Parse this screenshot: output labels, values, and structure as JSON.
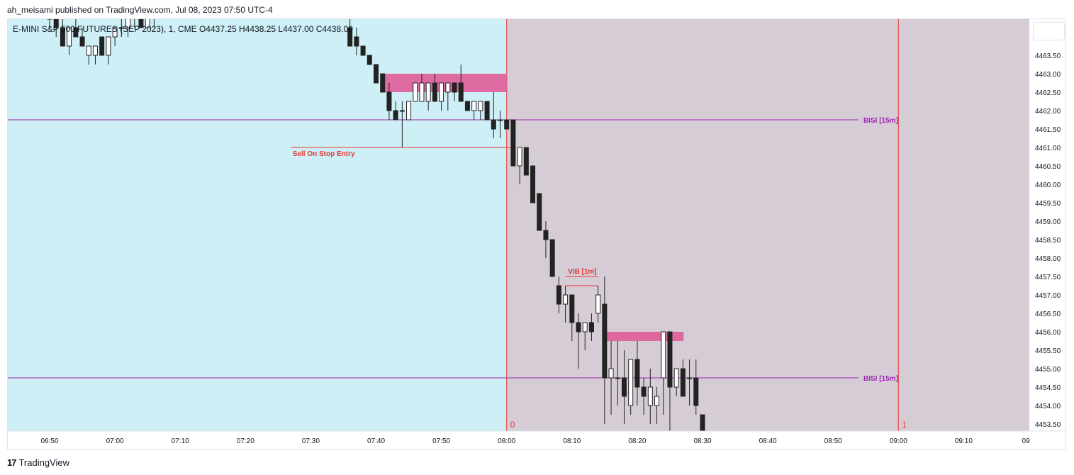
{
  "header": {
    "published_by": "ah_meisami published on TradingView.com, Jul 08, 2023 07:50 UTC-4"
  },
  "legend": {
    "symbol_line": "E-MINI S&P 500 FUTURES (SEP 2023), 1, CME  O4437.25  H4438.25  L4437.00  C4438.00"
  },
  "footer": {
    "logo_glyph": "17",
    "brand": "TradingView"
  },
  "colors": {
    "bg_pre": "#cdeff5",
    "bg_post": "#d6ccd5",
    "bull_body": "#ffffff",
    "bear_body": "#222222",
    "wick": "#222222",
    "bisi_line": "#9c27b0",
    "red_line": "#e53935",
    "zone": "#e0609a"
  },
  "chart_data": {
    "type": "candlestick",
    "timeframe": "1m",
    "y_ticks": [
      "4463.50",
      "4463.00",
      "4462.50",
      "4462.00",
      "4461.50",
      "4461.00",
      "4460.50",
      "4460.00",
      "4459.50",
      "4459.00",
      "4458.50",
      "4458.00",
      "4457.50",
      "4457.00",
      "4456.50",
      "4456.00",
      "4455.50",
      "4455.00",
      "4454.50",
      "4454.00",
      "4453.50"
    ],
    "x_ticks": [
      "06:50",
      "07:00",
      "07:10",
      "07:20",
      "07:30",
      "07:40",
      "07:50",
      "08:00",
      "08:10",
      "08:20",
      "08:30",
      "08:40",
      "08:50",
      "09:00",
      "09:10",
      "09"
    ],
    "ylim": [
      4453.3,
      4464.3
    ],
    "session_markers": [
      {
        "time": "08:00",
        "label": "0"
      },
      {
        "time": "09:00",
        "label": "1"
      }
    ],
    "annotations": [
      {
        "kind": "hline",
        "price": 4461.75,
        "from": "06:44",
        "to": "09:00",
        "label": "BISI [15m]",
        "color": "bisi"
      },
      {
        "kind": "hline",
        "price": 4454.75,
        "from": "06:44",
        "to": "09:00",
        "label": "BISI [15m]",
        "color": "bisi"
      },
      {
        "kind": "hline",
        "price": 4461.0,
        "from": "07:27",
        "to": "08:01",
        "label": "Sell On Stop Entry",
        "color": "red"
      },
      {
        "kind": "hline",
        "price": 4457.5,
        "from": "08:09",
        "to": "08:14",
        "label": "VIB [1m]",
        "color": "red"
      },
      {
        "kind": "hline",
        "price": 4457.25,
        "from": "08:09",
        "to": "08:14",
        "label": "",
        "color": "red"
      },
      {
        "kind": "zone",
        "from": "07:41",
        "to": "08:00",
        "top": 4463.0,
        "bottom": 4462.5
      },
      {
        "kind": "zone",
        "from": "08:15",
        "to": "08:27",
        "top": 4456.0,
        "bottom": 4455.75
      }
    ],
    "candles": [
      {
        "t": "06:50",
        "o": 4464.5,
        "h": 4464.75,
        "l": 4464.25,
        "c": 4464.5
      },
      {
        "t": "06:51",
        "o": 4464.5,
        "h": 4464.75,
        "l": 4464.0,
        "c": 4464.25
      },
      {
        "t": "06:52",
        "o": 4464.25,
        "h": 4464.5,
        "l": 4463.75,
        "c": 4463.75
      },
      {
        "t": "06:53",
        "o": 4463.75,
        "h": 4464.25,
        "l": 4463.5,
        "c": 4464.25
      },
      {
        "t": "06:54",
        "o": 4464.25,
        "h": 4464.5,
        "l": 4464.0,
        "c": 4464.0
      },
      {
        "t": "06:55",
        "o": 4464.0,
        "h": 4464.25,
        "l": 4463.75,
        "c": 4463.75
      },
      {
        "t": "06:56",
        "o": 4463.5,
        "h": 4463.75,
        "l": 4463.25,
        "c": 4463.75
      },
      {
        "t": "06:57",
        "o": 4463.5,
        "h": 4463.75,
        "l": 4463.25,
        "c": 4463.75
      },
      {
        "t": "06:58",
        "o": 4464.0,
        "h": 4464.0,
        "l": 4463.5,
        "c": 4463.5
      },
      {
        "t": "06:59",
        "o": 4463.5,
        "h": 4464.0,
        "l": 4463.25,
        "c": 4464.0
      },
      {
        "t": "07:00",
        "o": 4464.0,
        "h": 4464.25,
        "l": 4463.75,
        "c": 4464.25
      },
      {
        "t": "07:01",
        "o": 4464.25,
        "h": 4464.5,
        "l": 4464.0,
        "c": 4464.25
      },
      {
        "t": "07:02",
        "o": 4464.25,
        "h": 4464.5,
        "l": 4464.0,
        "c": 4464.5
      },
      {
        "t": "07:03",
        "o": 4464.5,
        "h": 4464.75,
        "l": 4464.25,
        "c": 4464.75
      },
      {
        "t": "07:04",
        "o": 4464.75,
        "h": 4464.75,
        "l": 4464.25,
        "c": 4464.25
      },
      {
        "t": "07:05",
        "o": 4464.25,
        "h": 4464.75,
        "l": 4464.25,
        "c": 4464.5
      },
      {
        "t": "07:06",
        "o": 4464.5,
        "h": 4464.75,
        "l": 4464.25,
        "c": 4464.75
      },
      {
        "t": "07:36",
        "o": 4464.25,
        "h": 4464.5,
        "l": 4463.75,
        "c": 4463.75
      },
      {
        "t": "07:37",
        "o": 4464.0,
        "h": 4464.25,
        "l": 4463.5,
        "c": 4463.75
      },
      {
        "t": "07:38",
        "o": 4463.75,
        "h": 4463.75,
        "l": 4463.5,
        "c": 4463.5
      },
      {
        "t": "07:39",
        "o": 4463.5,
        "h": 4463.5,
        "l": 4463.25,
        "c": 4463.25
      },
      {
        "t": "07:40",
        "o": 4463.25,
        "h": 4463.25,
        "l": 4462.75,
        "c": 4462.75
      },
      {
        "t": "07:41",
        "o": 4463.0,
        "h": 4463.0,
        "l": 4462.5,
        "c": 4462.5
      },
      {
        "t": "07:42",
        "o": 4462.5,
        "h": 4462.75,
        "l": 4461.75,
        "c": 4462.0
      },
      {
        "t": "07:43",
        "o": 4462.0,
        "h": 4462.25,
        "l": 4461.75,
        "c": 4461.75
      },
      {
        "t": "07:44",
        "o": 4462.0,
        "h": 4462.25,
        "l": 4461.0,
        "c": 4462.0
      },
      {
        "t": "07:45",
        "o": 4461.75,
        "h": 4462.25,
        "l": 4461.75,
        "c": 4462.25
      },
      {
        "t": "07:46",
        "o": 4462.25,
        "h": 4462.75,
        "l": 4462.25,
        "c": 4462.75
      },
      {
        "t": "07:47",
        "o": 4462.25,
        "h": 4463.0,
        "l": 4462.25,
        "c": 4462.75
      },
      {
        "t": "07:48",
        "o": 4462.25,
        "h": 4462.75,
        "l": 4462.0,
        "c": 4462.75
      },
      {
        "t": "07:49",
        "o": 4462.75,
        "h": 4463.0,
        "l": 4462.25,
        "c": 4462.25
      },
      {
        "t": "07:50",
        "o": 4462.25,
        "h": 4462.75,
        "l": 4462.0,
        "c": 4462.75
      },
      {
        "t": "07:51",
        "o": 4462.5,
        "h": 4462.75,
        "l": 4462.0,
        "c": 4462.75
      },
      {
        "t": "07:52",
        "o": 4462.75,
        "h": 4462.75,
        "l": 4462.25,
        "c": 4462.5
      },
      {
        "t": "07:53",
        "o": 4462.75,
        "h": 4463.25,
        "l": 4462.25,
        "c": 4462.25
      },
      {
        "t": "07:54",
        "o": 4462.25,
        "h": 4462.25,
        "l": 4462.0,
        "c": 4462.0
      },
      {
        "t": "07:55",
        "o": 4462.0,
        "h": 4462.25,
        "l": 4461.75,
        "c": 4462.25
      },
      {
        "t": "07:56",
        "o": 4462.0,
        "h": 4462.25,
        "l": 4461.75,
        "c": 4462.25
      },
      {
        "t": "07:57",
        "o": 4462.25,
        "h": 4462.25,
        "l": 4461.75,
        "c": 4461.75
      },
      {
        "t": "07:58",
        "o": 4461.75,
        "h": 4462.5,
        "l": 4461.25,
        "c": 4461.5
      },
      {
        "t": "07:59",
        "o": 4461.75,
        "h": 4462.0,
        "l": 4461.25,
        "c": 4461.75
      },
      {
        "t": "08:00",
        "o": 4461.75,
        "h": 4461.75,
        "l": 4461.5,
        "c": 4461.5
      },
      {
        "t": "08:01",
        "o": 4461.75,
        "h": 4461.75,
        "l": 4460.5,
        "c": 4460.5
      },
      {
        "t": "08:02",
        "o": 4460.5,
        "h": 4461.0,
        "l": 4460.0,
        "c": 4461.0
      },
      {
        "t": "08:03",
        "o": 4461.0,
        "h": 4461.0,
        "l": 4460.25,
        "c": 4460.25
      },
      {
        "t": "08:04",
        "o": 4460.5,
        "h": 4460.5,
        "l": 4459.5,
        "c": 4459.5
      },
      {
        "t": "08:05",
        "o": 4459.75,
        "h": 4459.75,
        "l": 4458.75,
        "c": 4458.75
      },
      {
        "t": "08:06",
        "o": 4458.75,
        "h": 4459.0,
        "l": 4458.0,
        "c": 4458.5
      },
      {
        "t": "08:07",
        "o": 4458.5,
        "h": 4458.5,
        "l": 4457.5,
        "c": 4457.5
      },
      {
        "t": "08:08",
        "o": 4457.25,
        "h": 4457.5,
        "l": 4456.5,
        "c": 4456.75
      },
      {
        "t": "08:09",
        "o": 4456.75,
        "h": 4457.25,
        "l": 4456.25,
        "c": 4457.0
      },
      {
        "t": "08:10",
        "o": 4457.0,
        "h": 4457.0,
        "l": 4455.75,
        "c": 4456.25
      },
      {
        "t": "08:11",
        "o": 4456.25,
        "h": 4456.5,
        "l": 4455.0,
        "c": 4456.0
      },
      {
        "t": "08:12",
        "o": 4456.0,
        "h": 4456.25,
        "l": 4455.5,
        "c": 4456.25
      },
      {
        "t": "08:13",
        "o": 4456.25,
        "h": 4456.5,
        "l": 4455.75,
        "c": 4456.0
      },
      {
        "t": "08:14",
        "o": 4456.5,
        "h": 4457.25,
        "l": 4456.25,
        "c": 4457.0
      },
      {
        "t": "08:15",
        "o": 4456.75,
        "h": 4457.5,
        "l": 4453.5,
        "c": 4454.75
      },
      {
        "t": "08:16",
        "o": 4454.75,
        "h": 4455.75,
        "l": 4453.75,
        "c": 4455.0
      },
      {
        "t": "08:17",
        "o": 4454.75,
        "h": 4455.75,
        "l": 4454.0,
        "c": 4454.75
      },
      {
        "t": "08:18",
        "o": 4454.75,
        "h": 4455.5,
        "l": 4453.5,
        "c": 4454.25
      },
      {
        "t": "08:19",
        "o": 4454.0,
        "h": 4455.25,
        "l": 4453.75,
        "c": 4455.25
      },
      {
        "t": "08:20",
        "o": 4455.25,
        "h": 4455.75,
        "l": 4454.0,
        "c": 4454.5
      },
      {
        "t": "08:21",
        "o": 4454.5,
        "h": 4454.75,
        "l": 4453.75,
        "c": 4454.25
      },
      {
        "t": "08:22",
        "o": 4454.0,
        "h": 4455.0,
        "l": 4453.5,
        "c": 4454.5
      },
      {
        "t": "08:23",
        "o": 4454.0,
        "h": 4454.5,
        "l": 4453.5,
        "c": 4454.25
      },
      {
        "t": "08:24",
        "o": 4454.75,
        "h": 4456.0,
        "l": 4453.75,
        "c": 4456.0
      },
      {
        "t": "08:25",
        "o": 4456.0,
        "h": 4456.0,
        "l": 4453.25,
        "c": 4454.5
      },
      {
        "t": "08:26",
        "o": 4454.5,
        "h": 4455.0,
        "l": 4454.25,
        "c": 4455.0
      },
      {
        "t": "08:27",
        "o": 4455.0,
        "h": 4455.25,
        "l": 4454.25,
        "c": 4454.25
      },
      {
        "t": "08:28",
        "o": 4454.75,
        "h": 4455.25,
        "l": 4454.0,
        "c": 4454.75
      },
      {
        "t": "08:29",
        "o": 4454.75,
        "h": 4455.25,
        "l": 4453.75,
        "c": 4454.0
      },
      {
        "t": "08:30",
        "o": 4453.75,
        "h": 4453.75,
        "l": 4453.25,
        "c": 4453.25
      }
    ]
  }
}
